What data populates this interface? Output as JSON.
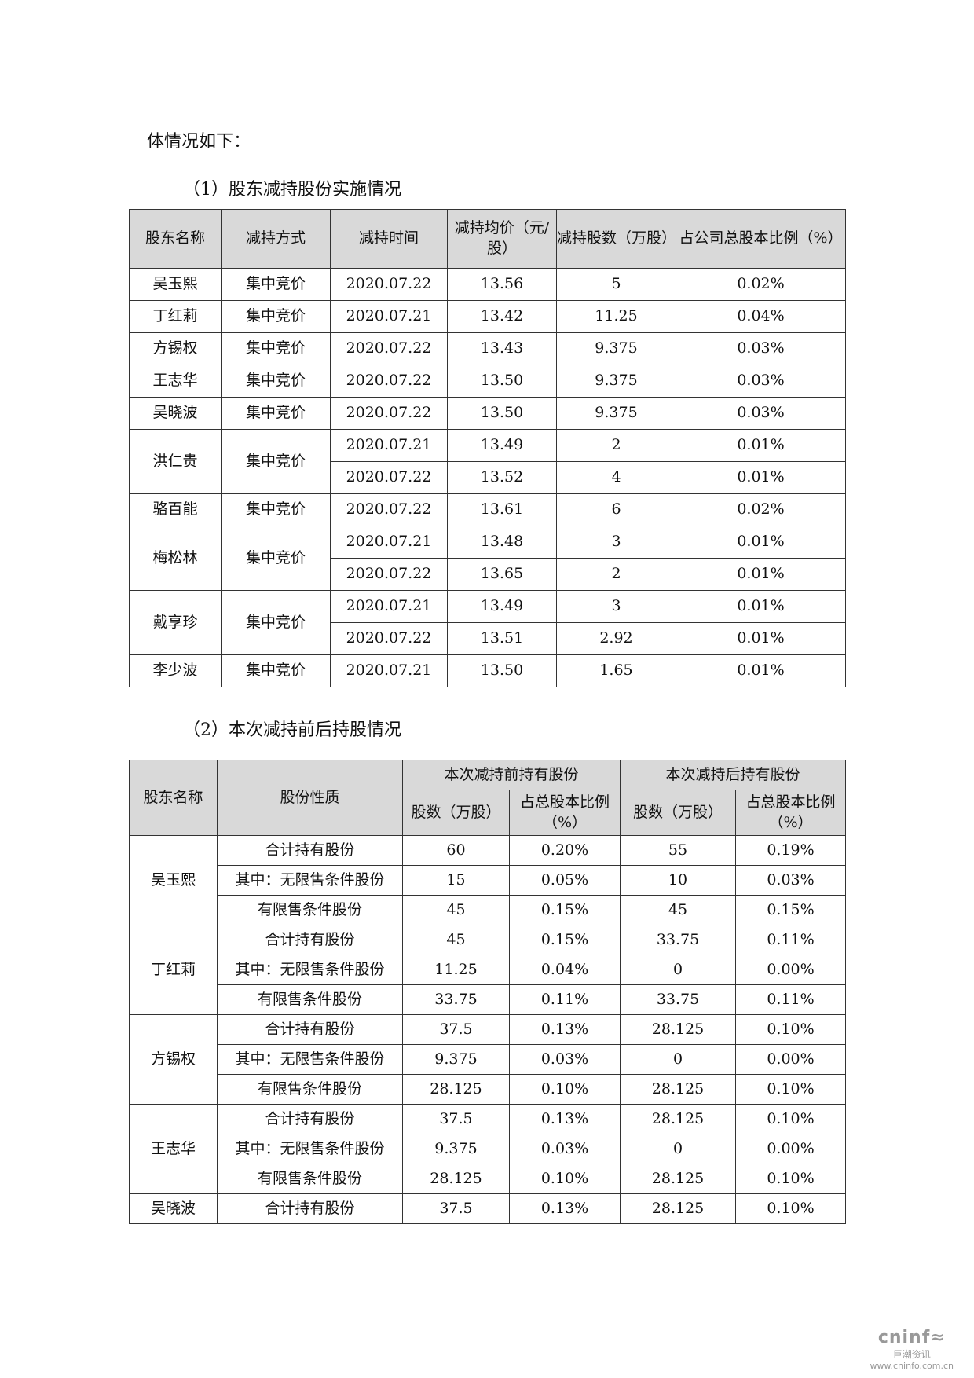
{
  "intro_tail": "体情况如下：",
  "section1_title": "（1）股东减持股份实施情况",
  "table1": {
    "headers": [
      "股东名称",
      "减持方式",
      "减持时间",
      "减持均价（元/股）",
      "减持股数（万股）",
      "占公司总股本比例（%）"
    ],
    "groups": [
      {
        "name": "吴玉熙",
        "method": "集中竞价",
        "rows": [
          [
            "2020.07.22",
            "13.56",
            "5",
            "0.02%"
          ]
        ]
      },
      {
        "name": "丁红莉",
        "method": "集中竞价",
        "rows": [
          [
            "2020.07.21",
            "13.42",
            "11.25",
            "0.04%"
          ]
        ]
      },
      {
        "name": "方锡权",
        "method": "集中竞价",
        "rows": [
          [
            "2020.07.22",
            "13.43",
            "9.375",
            "0.03%"
          ]
        ]
      },
      {
        "name": "王志华",
        "method": "集中竞价",
        "rows": [
          [
            "2020.07.22",
            "13.50",
            "9.375",
            "0.03%"
          ]
        ]
      },
      {
        "name": "吴晓波",
        "method": "集中竞价",
        "rows": [
          [
            "2020.07.22",
            "13.50",
            "9.375",
            "0.03%"
          ]
        ]
      },
      {
        "name": "洪仁贵",
        "method": "集中竞价",
        "rows": [
          [
            "2020.07.21",
            "13.49",
            "2",
            "0.01%"
          ],
          [
            "2020.07.22",
            "13.52",
            "4",
            "0.01%"
          ]
        ]
      },
      {
        "name": "骆百能",
        "method": "集中竞价",
        "rows": [
          [
            "2020.07.22",
            "13.61",
            "6",
            "0.02%"
          ]
        ]
      },
      {
        "name": "梅松林",
        "method": "集中竞价",
        "rows": [
          [
            "2020.07.21",
            "13.48",
            "3",
            "0.01%"
          ],
          [
            "2020.07.22",
            "13.65",
            "2",
            "0.01%"
          ]
        ]
      },
      {
        "name": "戴享珍",
        "method": "集中竞价",
        "rows": [
          [
            "2020.07.21",
            "13.49",
            "3",
            "0.01%"
          ],
          [
            "2020.07.22",
            "13.51",
            "2.92",
            "0.01%"
          ]
        ]
      },
      {
        "name": "李少波",
        "method": "集中竞价",
        "rows": [
          [
            "2020.07.21",
            "13.50",
            "1.65",
            "0.01%"
          ]
        ]
      }
    ]
  },
  "section2_title": "（2）本次减持前后持股情况",
  "table2": {
    "h_name": "股东名称",
    "h_type": "股份性质",
    "h_before": "本次减持前持有股份",
    "h_after": "本次减持后持有股份",
    "h_shares": "股数（万股）",
    "h_ratio": "占总股本比例（%）",
    "groups": [
      {
        "name": "吴玉熙",
        "rows": [
          [
            "合计持有股份",
            "60",
            "0.20%",
            "55",
            "0.19%"
          ],
          [
            "其中：无限售条件股份",
            "15",
            "0.05%",
            "10",
            "0.03%"
          ],
          [
            "有限售条件股份",
            "45",
            "0.15%",
            "45",
            "0.15%"
          ]
        ]
      },
      {
        "name": "丁红莉",
        "rows": [
          [
            "合计持有股份",
            "45",
            "0.15%",
            "33.75",
            "0.11%"
          ],
          [
            "其中：无限售条件股份",
            "11.25",
            "0.04%",
            "0",
            "0.00%"
          ],
          [
            "有限售条件股份",
            "33.75",
            "0.11%",
            "33.75",
            "0.11%"
          ]
        ]
      },
      {
        "name": "方锡权",
        "rows": [
          [
            "合计持有股份",
            "37.5",
            "0.13%",
            "28.125",
            "0.10%"
          ],
          [
            "其中：无限售条件股份",
            "9.375",
            "0.03%",
            "0",
            "0.00%"
          ],
          [
            "有限售条件股份",
            "28.125",
            "0.10%",
            "28.125",
            "0.10%"
          ]
        ]
      },
      {
        "name": "王志华",
        "rows": [
          [
            "合计持有股份",
            "37.5",
            "0.13%",
            "28.125",
            "0.10%"
          ],
          [
            "其中：无限售条件股份",
            "9.375",
            "0.03%",
            "0",
            "0.00%"
          ],
          [
            "有限售条件股份",
            "28.125",
            "0.10%",
            "28.125",
            "0.10%"
          ]
        ]
      },
      {
        "name": "吴晓波",
        "rows": [
          [
            "合计持有股份",
            "37.5",
            "0.13%",
            "28.125",
            "0.10%"
          ]
        ]
      }
    ]
  },
  "watermark": {
    "brand": "cninf",
    "cn": "巨潮资讯",
    "url": "www.cninfo.com.cn"
  }
}
